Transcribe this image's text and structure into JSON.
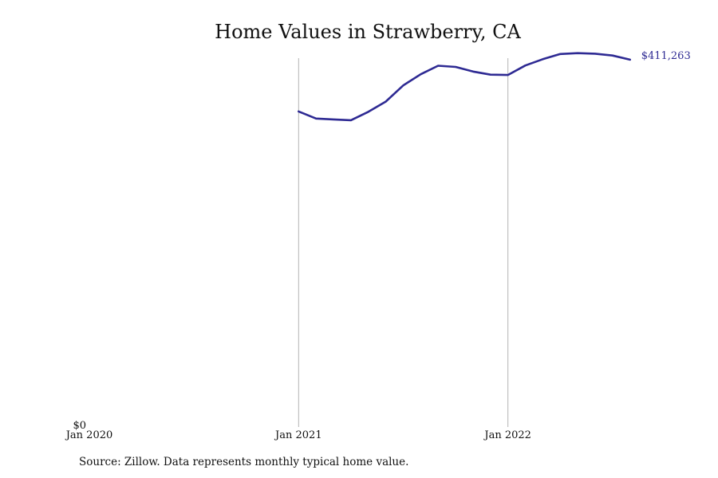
{
  "chart_data": {
    "type": "line",
    "title": "Home Values in Strawberry, CA",
    "xlabel": "",
    "ylabel": "",
    "x_ticks": [
      {
        "label": "Jan 2020",
        "month_index": 0
      },
      {
        "label": "Jan 2021",
        "month_index": 12
      },
      {
        "label": "Jan 2022",
        "month_index": 24
      }
    ],
    "y_ticks": [
      {
        "label": "$0",
        "value": 0
      }
    ],
    "xlim_months": [
      0,
      36
    ],
    "ylim": [
      0,
      413000
    ],
    "grid": "vertical lines at year ticks",
    "series": [
      {
        "color": "#2e2a93",
        "end_label": "$411,263",
        "points": [
          {
            "month_index": 12,
            "value": 353300
          },
          {
            "month_index": 13,
            "value": 345400
          },
          {
            "month_index": 14,
            "value": 344400
          },
          {
            "month_index": 15,
            "value": 343500
          },
          {
            "month_index": 16,
            "value": 353000
          },
          {
            "month_index": 17,
            "value": 364400
          },
          {
            "month_index": 18,
            "value": 382500
          },
          {
            "month_index": 19,
            "value": 395000
          },
          {
            "month_index": 20,
            "value": 404500
          },
          {
            "month_index": 21,
            "value": 403200
          },
          {
            "month_index": 22,
            "value": 398000
          },
          {
            "month_index": 23,
            "value": 394500
          },
          {
            "month_index": 24,
            "value": 394200
          },
          {
            "month_index": 25,
            "value": 404800
          },
          {
            "month_index": 26,
            "value": 411800
          },
          {
            "month_index": 27,
            "value": 417600
          },
          {
            "month_index": 28,
            "value": 418600
          },
          {
            "month_index": 29,
            "value": 418000
          },
          {
            "month_index": 30,
            "value": 415900
          },
          {
            "month_index": 31,
            "value": 411263
          }
        ]
      }
    ]
  },
  "source_note": "Source: Zillow. Data represents monthly typical home value."
}
